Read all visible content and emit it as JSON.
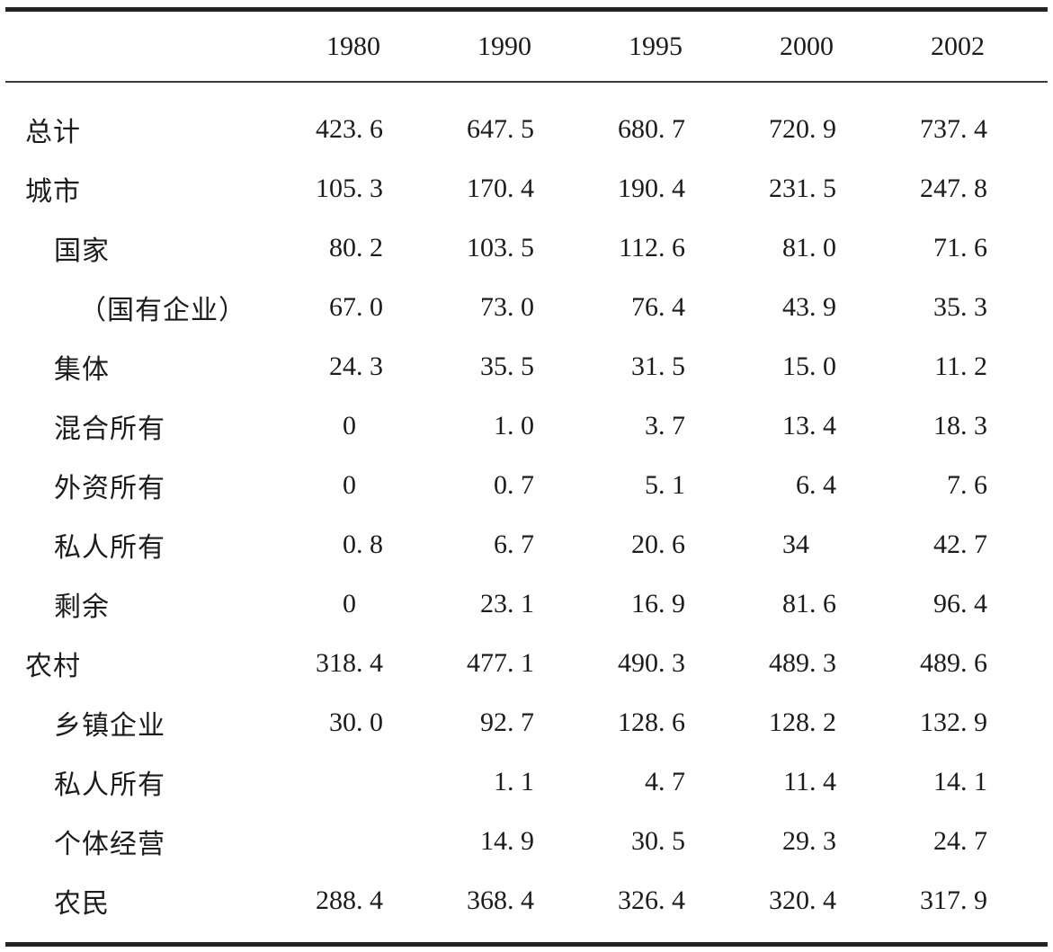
{
  "table": {
    "columns": [
      "1980",
      "1990",
      "1995",
      "2000",
      "2002"
    ],
    "rows": [
      {
        "label": "总计",
        "indent": 0,
        "values": [
          "423.6",
          "647.5",
          "680.7",
          "720.9",
          "737.4"
        ]
      },
      {
        "label": "城市",
        "indent": 0,
        "values": [
          "105.3",
          "170.4",
          "190.4",
          "231.5",
          "247.8"
        ]
      },
      {
        "label": "国家",
        "indent": 1,
        "values": [
          "80.2",
          "103.5",
          "112.6",
          "81.0",
          "71.6"
        ]
      },
      {
        "label": "（国有企业）",
        "indent": 2,
        "values": [
          "67.0",
          "73.0",
          "76.4",
          "43.9",
          "35.3"
        ]
      },
      {
        "label": "集体",
        "indent": 1,
        "values": [
          "24.3",
          "35.5",
          "31.5",
          "15.0",
          "11.2"
        ]
      },
      {
        "label": "混合所有",
        "indent": 1,
        "values": [
          "0",
          "1.0",
          "3.7",
          "13.4",
          "18.3"
        ]
      },
      {
        "label": "外资所有",
        "indent": 1,
        "values": [
          "0",
          "0.7",
          "5.1",
          "6.4",
          "7.6"
        ]
      },
      {
        "label": "私人所有",
        "indent": 1,
        "values": [
          "0.8",
          "6.7",
          "20.6",
          "34",
          "42.7"
        ]
      },
      {
        "label": "剩余",
        "indent": 1,
        "values": [
          "0",
          "23.1",
          "16.9",
          "81.6",
          "96.4"
        ]
      },
      {
        "label": "农村",
        "indent": 0,
        "values": [
          "318.4",
          "477.1",
          "490.3",
          "489.3",
          "489.6"
        ]
      },
      {
        "label": "乡镇企业",
        "indent": 1,
        "values": [
          "30.0",
          "92.7",
          "128.6",
          "128.2",
          "132.9"
        ]
      },
      {
        "label": "私人所有",
        "indent": 1,
        "values": [
          "",
          "1.1",
          "4.7",
          "11.4",
          "14.1"
        ]
      },
      {
        "label": "个体经营",
        "indent": 1,
        "values": [
          "",
          "14.9",
          "30.5",
          "29.3",
          "24.7"
        ]
      },
      {
        "label": "农民",
        "indent": 1,
        "values": [
          "288.4",
          "368.4",
          "326.4",
          "320.4",
          "317.9"
        ]
      }
    ],
    "rules_color": "#222222"
  }
}
